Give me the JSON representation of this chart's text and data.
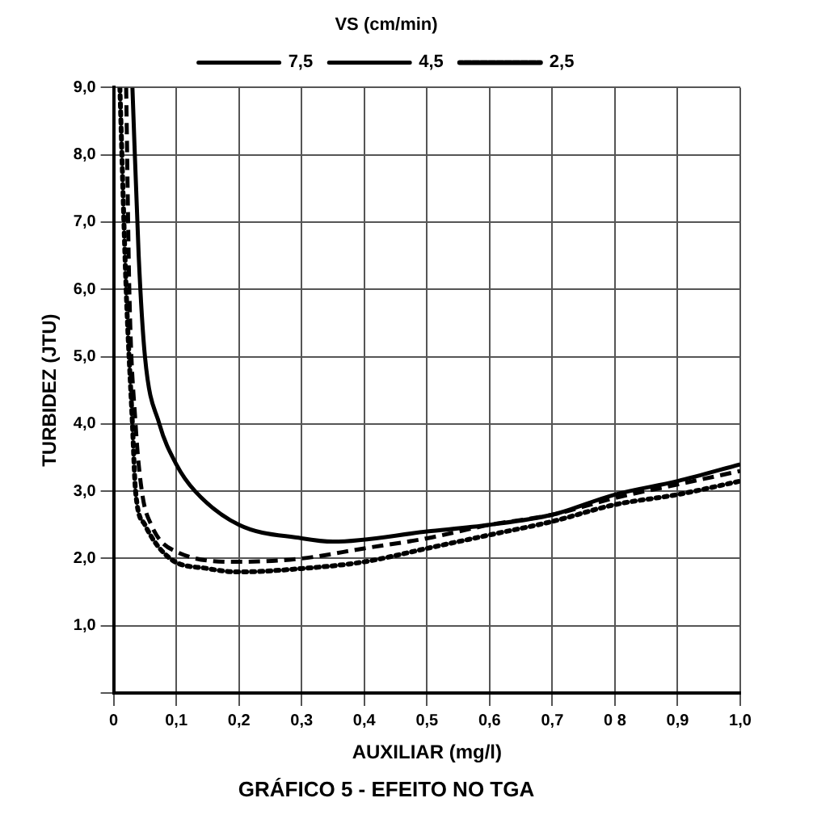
{
  "chart_data": {
    "type": "line",
    "title": "GRÁFICO 5 - EFEITO NO TGA",
    "xlabel": "AUXILIAR (mg/l)",
    "ylabel": "TURBIDEZ (JTU)",
    "legend_title": "VS (cm/min)",
    "legend": "top",
    "grid": true,
    "marker": "none",
    "xlim": [
      0,
      1
    ],
    "ylim": [
      0,
      9
    ],
    "xticks": [
      0,
      {
        "value": 0.1,
        "label": "0,1"
      },
      {
        "value": 0.2,
        "label": "0,2"
      },
      {
        "value": 0.3,
        "label": "0,3"
      },
      {
        "value": 0.4,
        "label": "0,4"
      },
      {
        "value": 0.5,
        "label": "0,5"
      },
      {
        "value": 0.6,
        "label": "0,6"
      },
      {
        "value": 0.7,
        "label": "0,7"
      },
      {
        "value": 0.8,
        "label": "0 8"
      },
      {
        "value": 0.9,
        "label": "0,9"
      },
      {
        "value": 1,
        "label": "1,0"
      }
    ],
    "yticks": [
      {
        "value": 0,
        "label": null
      },
      {
        "value": 1,
        "label": "1,0"
      },
      {
        "value": 2,
        "label": "2,0"
      },
      {
        "value": 3,
        "label": "3,0"
      },
      {
        "value": 4,
        "label": "4,0"
      },
      {
        "value": 5,
        "label": "5,0"
      },
      {
        "value": 6,
        "label": "6,0"
      },
      {
        "value": 7,
        "label": "7,0"
      },
      {
        "value": 8,
        "label": "8,0"
      },
      {
        "value": 9,
        "label": "9,0"
      }
    ],
    "series": [
      {
        "name": "7,5",
        "color": "#000000",
        "line_style": "solid",
        "x": [
          0.03,
          0.04,
          0.05,
          0.073,
          0.1,
          0.13,
          0.2,
          0.3,
          0.35,
          0.5,
          0.6,
          0.7,
          0.8,
          0.9,
          1.0
        ],
        "values": [
          9,
          6.5,
          5,
          4,
          3.4,
          3,
          2.5,
          2.3,
          2.25,
          2.4,
          2.5,
          2.65,
          2.95,
          3.15,
          3.4
        ]
      },
      {
        "name": "4,5",
        "color": "#000000",
        "line_style": "dashed",
        "x": [
          0.02,
          0.025,
          0.035,
          0.045,
          0.06,
          0.1,
          0.2,
          0.3,
          0.4,
          0.5,
          0.6,
          0.7,
          0.8,
          0.9,
          1.0
        ],
        "values": [
          9,
          6,
          4,
          3,
          2.5,
          2.1,
          1.95,
          2,
          2.15,
          2.3,
          2.5,
          2.65,
          2.9,
          3.1,
          3.3
        ]
      },
      {
        "name": "2,5",
        "color": "#000000",
        "line_style": "dotted",
        "x": [
          0.01,
          0.02,
          0.03,
          0.035,
          0.05,
          0.09,
          0.15,
          0.2,
          0.3,
          0.4,
          0.5,
          0.6,
          0.7,
          0.8,
          0.9,
          1.0
        ],
        "values": [
          9,
          6,
          4,
          3,
          2.5,
          2,
          1.85,
          1.8,
          1.85,
          1.95,
          2.15,
          2.35,
          2.55,
          2.8,
          2.95,
          3.15
        ]
      }
    ]
  }
}
